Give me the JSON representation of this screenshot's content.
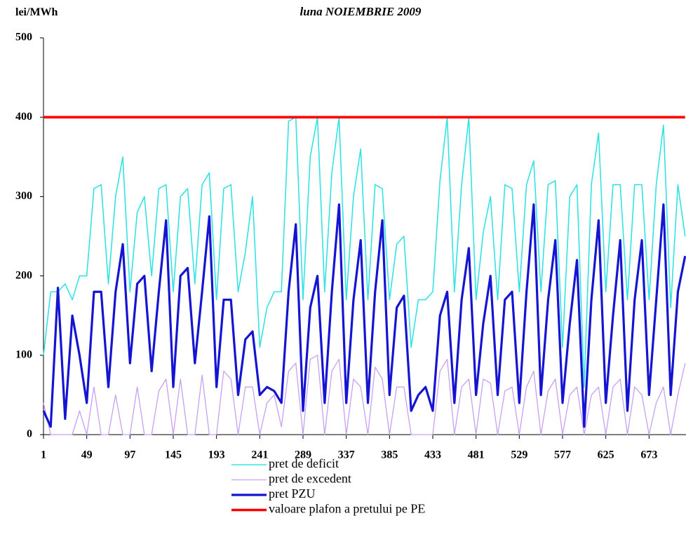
{
  "chart_data": {
    "type": "line",
    "title": "luna  NOIEMBRIE 2009",
    "y_label": "lei/MWh",
    "x": [
      1,
      9,
      17,
      25,
      33,
      41,
      49,
      57,
      65,
      73,
      81,
      89,
      97,
      105,
      113,
      121,
      129,
      137,
      145,
      153,
      161,
      169,
      177,
      185,
      193,
      201,
      209,
      217,
      225,
      233,
      241,
      249,
      257,
      265,
      273,
      281,
      289,
      297,
      305,
      313,
      321,
      329,
      337,
      345,
      353,
      361,
      369,
      377,
      385,
      393,
      401,
      409,
      417,
      425,
      433,
      441,
      449,
      457,
      465,
      473,
      481,
      489,
      497,
      505,
      513,
      521,
      529,
      537,
      545,
      553,
      561,
      569,
      577,
      585,
      593,
      601,
      609,
      617,
      625,
      633,
      641,
      649,
      657,
      665,
      673,
      681,
      689,
      697,
      705,
      713
    ],
    "xlim": [
      1,
      714
    ],
    "xticks": [
      1,
      49,
      97,
      145,
      193,
      241,
      289,
      337,
      385,
      433,
      481,
      529,
      577,
      625,
      673
    ],
    "ylim": [
      0,
      500
    ],
    "yticks": [
      0,
      100,
      200,
      300,
      400,
      500
    ],
    "series": [
      {
        "name": "pret de deficit",
        "color": "#33e3e3",
        "width": 1.6,
        "values": [
          100,
          180,
          180,
          190,
          170,
          200,
          200,
          310,
          315,
          190,
          300,
          350,
          180,
          280,
          300,
          200,
          310,
          315,
          180,
          300,
          310,
          190,
          315,
          330,
          170,
          310,
          315,
          180,
          230,
          300,
          110,
          160,
          180,
          180,
          395,
          400,
          170,
          350,
          400,
          180,
          330,
          400,
          170,
          300,
          360,
          170,
          315,
          310,
          170,
          240,
          250,
          110,
          170,
          170,
          180,
          320,
          400,
          180,
          315,
          400,
          170,
          255,
          300,
          170,
          315,
          310,
          180,
          315,
          345,
          180,
          315,
          320,
          110,
          300,
          315,
          60,
          315,
          380,
          180,
          315,
          315,
          170,
          315,
          315,
          170,
          315,
          390,
          160,
          315,
          250
        ]
      },
      {
        "name": "pret de excedent",
        "color": "#c8a0f0",
        "width": 1.3,
        "values": [
          40,
          0,
          0,
          0,
          0,
          30,
          0,
          60,
          0,
          0,
          50,
          0,
          0,
          60,
          0,
          0,
          55,
          70,
          0,
          70,
          0,
          0,
          75,
          0,
          0,
          80,
          70,
          0,
          60,
          60,
          0,
          40,
          50,
          10,
          80,
          90,
          0,
          95,
          100,
          0,
          80,
          95,
          0,
          70,
          60,
          0,
          85,
          70,
          0,
          60,
          60,
          0,
          0,
          0,
          0,
          80,
          95,
          0,
          60,
          70,
          0,
          70,
          65,
          0,
          55,
          60,
          0,
          60,
          80,
          0,
          55,
          70,
          0,
          50,
          60,
          0,
          50,
          60,
          0,
          60,
          70,
          0,
          60,
          50,
          0,
          40,
          60,
          0,
          50,
          90
        ]
      },
      {
        "name": "pret PZU",
        "color": "#1414d2",
        "width": 3.2,
        "values": [
          30,
          10,
          185,
          20,
          150,
          100,
          40,
          180,
          180,
          60,
          180,
          240,
          90,
          190,
          200,
          80,
          180,
          270,
          60,
          200,
          210,
          90,
          180,
          275,
          60,
          170,
          170,
          50,
          120,
          130,
          50,
          60,
          55,
          40,
          180,
          265,
          30,
          160,
          200,
          40,
          180,
          290,
          40,
          170,
          245,
          40,
          180,
          270,
          50,
          160,
          175,
          30,
          50,
          60,
          30,
          150,
          180,
          40,
          170,
          235,
          50,
          140,
          200,
          50,
          170,
          180,
          40,
          180,
          290,
          50,
          170,
          245,
          40,
          140,
          220,
          10,
          170,
          270,
          40,
          150,
          245,
          30,
          170,
          245,
          50,
          170,
          290,
          50,
          180,
          225
        ]
      },
      {
        "name": "valoare plafon a pretului pe PE",
        "color": "#ff0000",
        "width": 3.6,
        "values": [
          400,
          400,
          400,
          400,
          400,
          400,
          400,
          400,
          400,
          400,
          400,
          400,
          400,
          400,
          400,
          400,
          400,
          400,
          400,
          400,
          400,
          400,
          400,
          400,
          400,
          400,
          400,
          400,
          400,
          400,
          400,
          400,
          400,
          400,
          400,
          400,
          400,
          400,
          400,
          400,
          400,
          400,
          400,
          400,
          400,
          400,
          400,
          400,
          400,
          400,
          400,
          400,
          400,
          400,
          400,
          400,
          400,
          400,
          400,
          400,
          400,
          400,
          400,
          400,
          400,
          400,
          400,
          400,
          400,
          400,
          400,
          400,
          400,
          400,
          400,
          400,
          400,
          400,
          400,
          400,
          400,
          400,
          400,
          400,
          400,
          400,
          400,
          400,
          400,
          400
        ]
      }
    ]
  }
}
